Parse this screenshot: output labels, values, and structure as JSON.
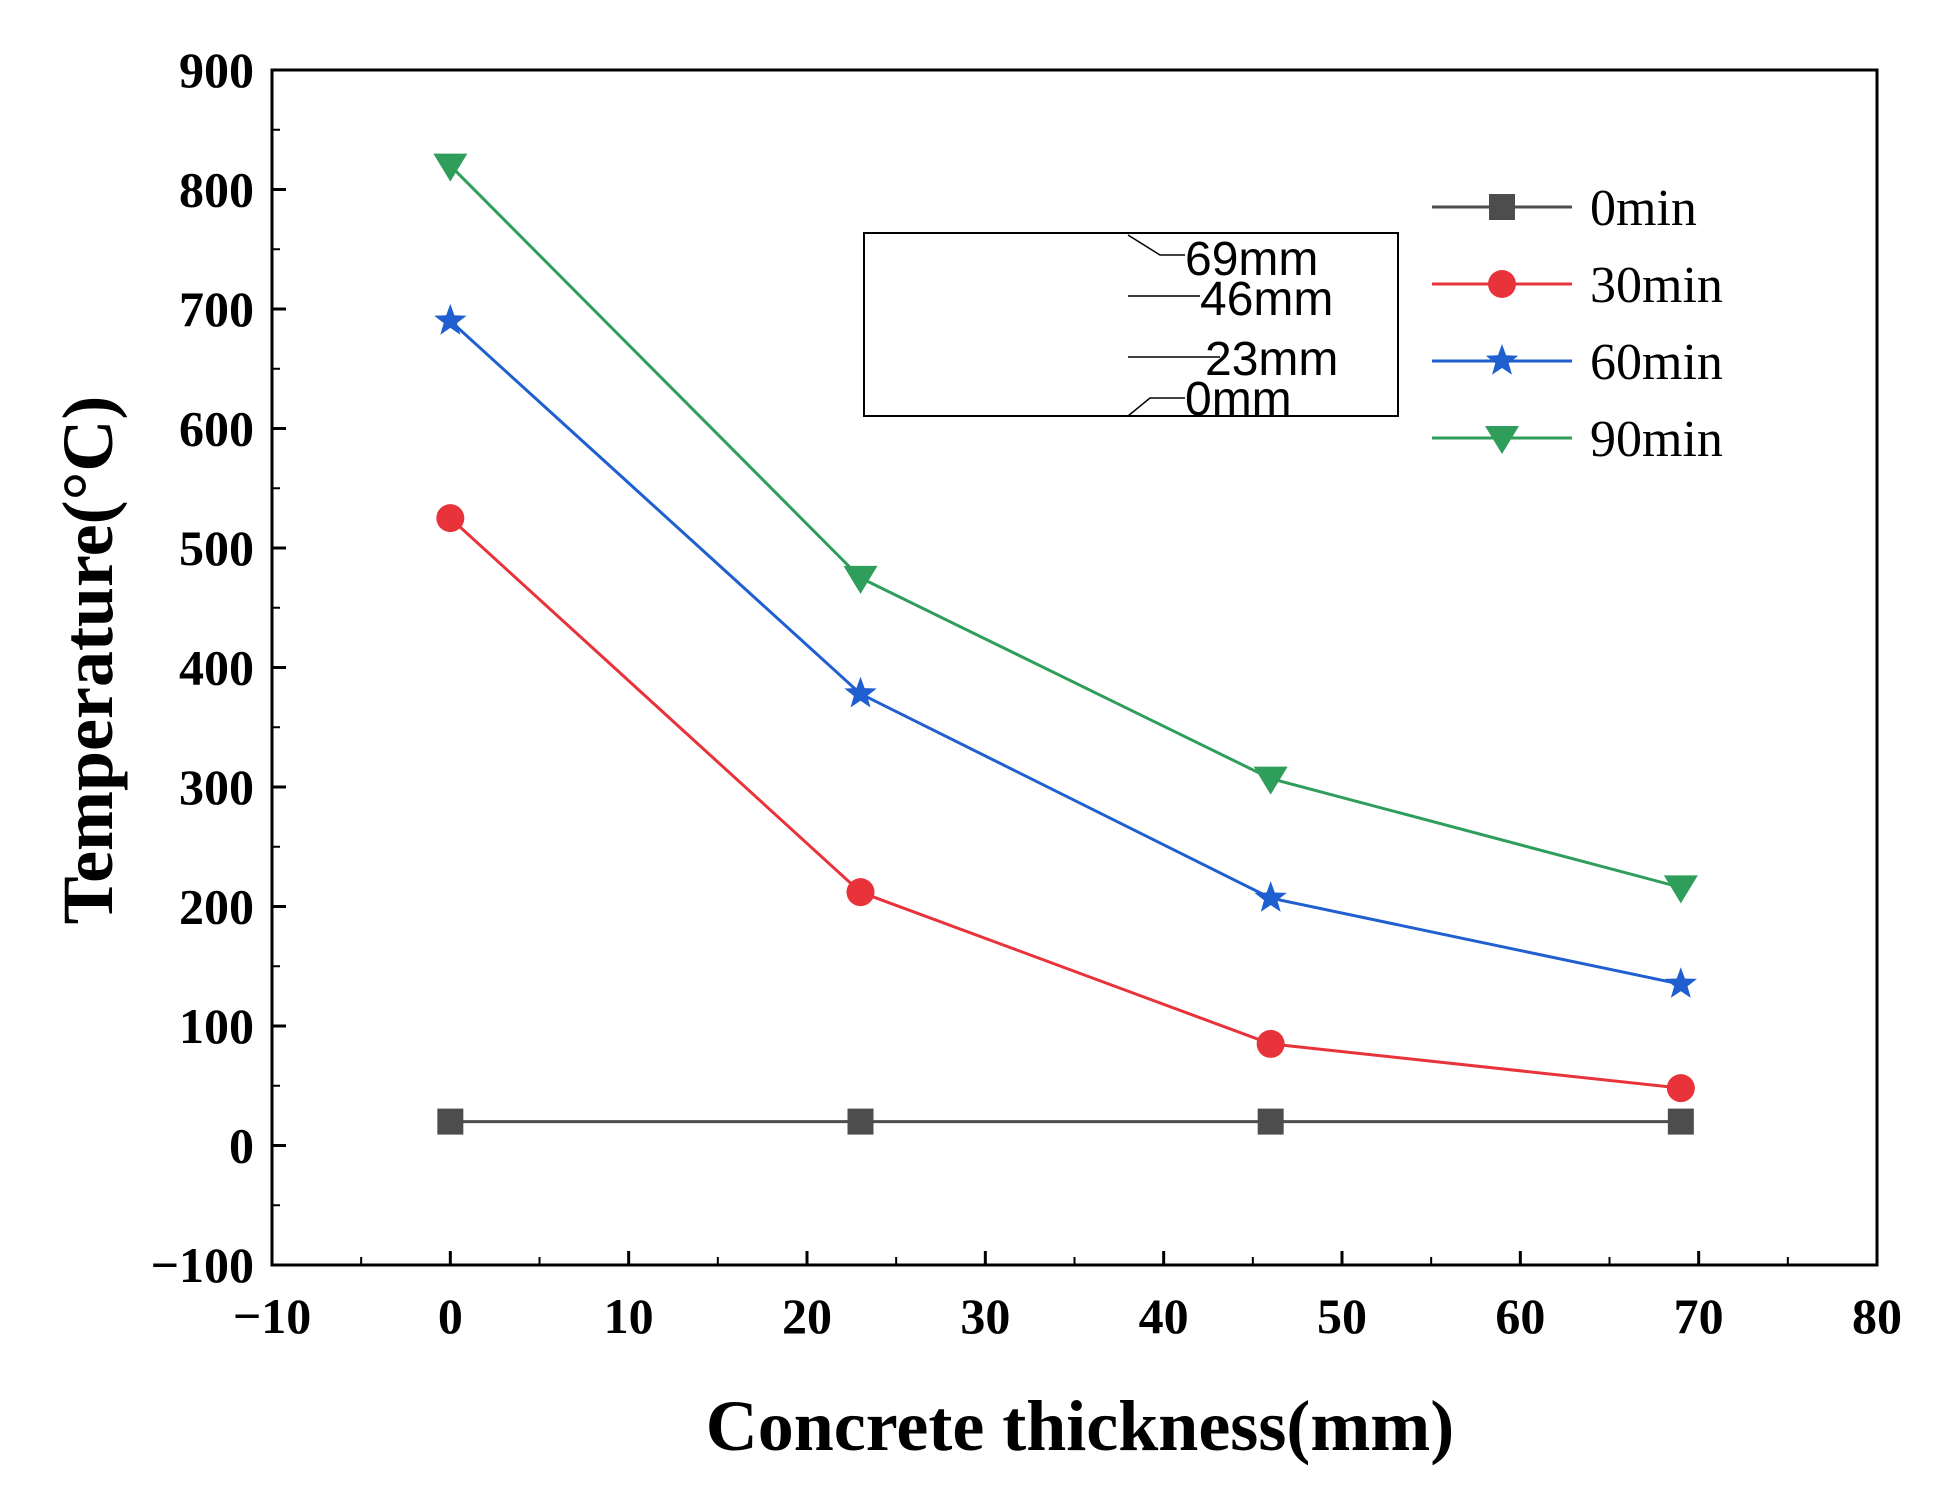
{
  "chart_data": {
    "type": "line",
    "title": "",
    "xlabel": "Concrete thickness(mm)",
    "ylabel": "Temperature(°C)",
    "xlim": [
      -10,
      80
    ],
    "ylim": [
      -100,
      900
    ],
    "xticks": [
      -10,
      0,
      10,
      20,
      30,
      40,
      50,
      60,
      70,
      80
    ],
    "yticks": [
      -100,
      0,
      100,
      200,
      300,
      400,
      500,
      600,
      700,
      800,
      900
    ],
    "x": [
      0,
      23,
      46,
      69
    ],
    "series": [
      {
        "name": "0min",
        "values": [
          20,
          20,
          20,
          20
        ],
        "color": "#4d4d4d",
        "marker": "square"
      },
      {
        "name": "30min",
        "values": [
          525,
          212,
          85,
          48
        ],
        "color": "#e8333a",
        "marker": "circle"
      },
      {
        "name": "60min",
        "values": [
          690,
          378,
          207,
          135
        ],
        "color": "#1f5fd0",
        "marker": "star"
      },
      {
        "name": "90min",
        "values": [
          820,
          475,
          307,
          216
        ],
        "color": "#2e9e5a",
        "marker": "triangle-down"
      }
    ],
    "legend_position": "top-right",
    "inset": {
      "labels": [
        "69mm",
        "46mm",
        "23mm",
        "0mm"
      ]
    }
  }
}
